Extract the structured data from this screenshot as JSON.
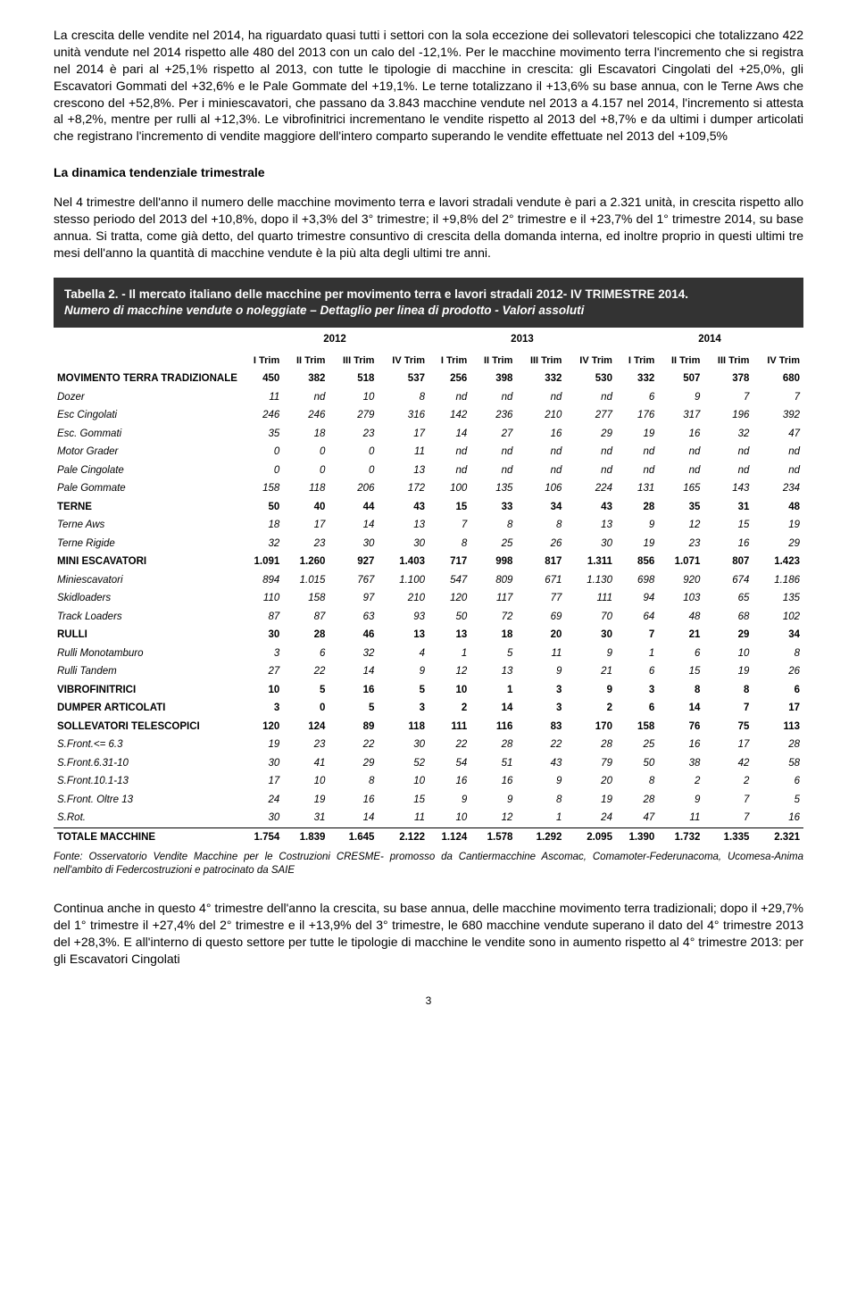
{
  "para1": "La crescita delle vendite nel 2014, ha riguardato quasi tutti i settori con la sola eccezione dei sollevatori telescopici che totalizzano 422 unità vendute nel 2014 rispetto alle 480 del 2013 con un calo del -12,1%. Per le macchine movimento terra l'incremento che si registra nel 2014 è pari al +25,1% rispetto al 2013, con tutte le tipologie di macchine in crescita: gli Escavatori Cingolati del +25,0%, gli Escavatori Gommati del +32,6% e le Pale Gommate del +19,1%. Le terne totalizzano il +13,6% su base annua, con le Terne Aws che crescono del +52,8%. Per i miniescavatori, che passano da 3.843 macchine vendute nel 2013 a 4.157 nel 2014, l'incremento si attesta al +8,2%, mentre per rulli al +12,3%. Le vibrofinitrici incrementano le vendite rispetto al 2013 del +8,7% e da ultimi i dumper articolati che registrano l'incremento di vendite maggiore dell'intero comparto superando le vendite effettuate nel 2013 del +109,5%",
  "heading1": "La dinamica tendenziale trimestrale",
  "para2": "Nel 4 trimestre dell'anno il numero delle macchine movimento terra e lavori stradali vendute è pari a 2.321 unità, in crescita rispetto allo stesso periodo del 2013 del +10,8%, dopo il +3,3% del 3° trimestre; il +9,8% del 2° trimestre e il +23,7% del 1° trimestre 2014, su base annua. Si tratta, come già detto, del quarto trimestre consuntivo di crescita della domanda interna, ed inoltre proprio in questi ultimi tre mesi dell'anno la quantità di macchine vendute è la più alta degli ultimi tre anni.",
  "table_title": "Tabella 2. - Il mercato italiano delle macchine per movimento terra e lavori stradali 2012- IV TRIMESTRE 2014.",
  "table_sub": "Numero di macchine vendute o noleggiate – Dettaglio per linea di prodotto - Valori assoluti",
  "years": [
    "2012",
    "2013",
    "2014"
  ],
  "trim_labels": [
    "I Trim",
    "II Trim",
    "III Trim",
    "IV Trim",
    "I Trim",
    "II Trim",
    "III Trim",
    "IV Trim",
    "I Trim",
    "II Trim",
    "III Trim",
    "IV Trim"
  ],
  "rows": [
    {
      "style": "bold",
      "label": "MOVIMENTO TERRA TRADIZIONALE",
      "v": [
        "450",
        "382",
        "518",
        "537",
        "256",
        "398",
        "332",
        "530",
        "332",
        "507",
        "378",
        "680"
      ]
    },
    {
      "style": "italic",
      "label": "Dozer",
      "v": [
        "11",
        "nd",
        "10",
        "8",
        "nd",
        "nd",
        "nd",
        "nd",
        "6",
        "9",
        "7",
        "7"
      ]
    },
    {
      "style": "italic",
      "label": "Esc Cingolati",
      "v": [
        "246",
        "246",
        "279",
        "316",
        "142",
        "236",
        "210",
        "277",
        "176",
        "317",
        "196",
        "392"
      ]
    },
    {
      "style": "italic",
      "label": "Esc. Gommati",
      "v": [
        "35",
        "18",
        "23",
        "17",
        "14",
        "27",
        "16",
        "29",
        "19",
        "16",
        "32",
        "47"
      ]
    },
    {
      "style": "italic",
      "label": "Motor Grader",
      "v": [
        "0",
        "0",
        "0",
        "11",
        "nd",
        "nd",
        "nd",
        "nd",
        "nd",
        "nd",
        "nd",
        "nd"
      ]
    },
    {
      "style": "italic",
      "label": "Pale Cingolate",
      "v": [
        "0",
        "0",
        "0",
        "13",
        "nd",
        "nd",
        "nd",
        "nd",
        "nd",
        "nd",
        "nd",
        "nd"
      ]
    },
    {
      "style": "italic",
      "label": "Pale Gommate",
      "v": [
        "158",
        "118",
        "206",
        "172",
        "100",
        "135",
        "106",
        "224",
        "131",
        "165",
        "143",
        "234"
      ]
    },
    {
      "style": "bold",
      "label": "TERNE",
      "v": [
        "50",
        "40",
        "44",
        "43",
        "15",
        "33",
        "34",
        "43",
        "28",
        "35",
        "31",
        "48"
      ]
    },
    {
      "style": "italic",
      "label": "Terne Aws",
      "v": [
        "18",
        "17",
        "14",
        "13",
        "7",
        "8",
        "8",
        "13",
        "9",
        "12",
        "15",
        "19"
      ]
    },
    {
      "style": "italic",
      "label": "Terne Rigide",
      "v": [
        "32",
        "23",
        "30",
        "30",
        "8",
        "25",
        "26",
        "30",
        "19",
        "23",
        "16",
        "29"
      ]
    },
    {
      "style": "bold",
      "label": "MINI ESCAVATORI",
      "v": [
        "1.091",
        "1.260",
        "927",
        "1.403",
        "717",
        "998",
        "817",
        "1.311",
        "856",
        "1.071",
        "807",
        "1.423"
      ]
    },
    {
      "style": "italic",
      "label": "Miniescavatori",
      "v": [
        "894",
        "1.015",
        "767",
        "1.100",
        "547",
        "809",
        "671",
        "1.130",
        "698",
        "920",
        "674",
        "1.186"
      ]
    },
    {
      "style": "italic",
      "label": "Skidloaders",
      "v": [
        "110",
        "158",
        "97",
        "210",
        "120",
        "117",
        "77",
        "111",
        "94",
        "103",
        "65",
        "135"
      ]
    },
    {
      "style": "italic",
      "label": "Track Loaders",
      "v": [
        "87",
        "87",
        "63",
        "93",
        "50",
        "72",
        "69",
        "70",
        "64",
        "48",
        "68",
        "102"
      ]
    },
    {
      "style": "bold",
      "label": "RULLI",
      "v": [
        "30",
        "28",
        "46",
        "13",
        "13",
        "18",
        "20",
        "30",
        "7",
        "21",
        "29",
        "34"
      ]
    },
    {
      "style": "italic",
      "label": "Rulli Monotamburo",
      "v": [
        "3",
        "6",
        "32",
        "4",
        "1",
        "5",
        "11",
        "9",
        "1",
        "6",
        "10",
        "8"
      ]
    },
    {
      "style": "italic",
      "label": "Rulli Tandem",
      "v": [
        "27",
        "22",
        "14",
        "9",
        "12",
        "13",
        "9",
        "21",
        "6",
        "15",
        "19",
        "26"
      ]
    },
    {
      "style": "bold",
      "label": "VIBROFINITRICI",
      "v": [
        "10",
        "5",
        "16",
        "5",
        "10",
        "1",
        "3",
        "9",
        "3",
        "8",
        "8",
        "6"
      ]
    },
    {
      "style": "bold",
      "label": "DUMPER ARTICOLATI",
      "v": [
        "3",
        "0",
        "5",
        "3",
        "2",
        "14",
        "3",
        "2",
        "6",
        "14",
        "7",
        "17"
      ]
    },
    {
      "style": "bold",
      "label": "SOLLEVATORI TELESCOPICI",
      "v": [
        "120",
        "124",
        "89",
        "118",
        "111",
        "116",
        "83",
        "170",
        "158",
        "76",
        "75",
        "113"
      ]
    },
    {
      "style": "italic",
      "label": "S.Front.<= 6.3",
      "v": [
        "19",
        "23",
        "22",
        "30",
        "22",
        "28",
        "22",
        "28",
        "25",
        "16",
        "17",
        "28"
      ]
    },
    {
      "style": "italic",
      "label": "S.Front.6.31-10",
      "v": [
        "30",
        "41",
        "29",
        "52",
        "54",
        "51",
        "43",
        "79",
        "50",
        "38",
        "42",
        "58"
      ]
    },
    {
      "style": "italic",
      "label": "S.Front.10.1-13",
      "v": [
        "17",
        "10",
        "8",
        "10",
        "16",
        "16",
        "9",
        "20",
        "8",
        "2",
        "2",
        "6"
      ]
    },
    {
      "style": "italic",
      "label": "S.Front. Oltre 13",
      "v": [
        "24",
        "19",
        "16",
        "15",
        "9",
        "9",
        "8",
        "19",
        "28",
        "9",
        "7",
        "5"
      ]
    },
    {
      "style": "italic",
      "label": "S.Rot.",
      "v": [
        "30",
        "31",
        "14",
        "11",
        "10",
        "12",
        "1",
        "24",
        "47",
        "11",
        "7",
        "16"
      ]
    }
  ],
  "totale": {
    "label": "TOTALE MACCHINE",
    "v": [
      "1.754",
      "1.839",
      "1.645",
      "2.122",
      "1.124",
      "1.578",
      "1.292",
      "2.095",
      "1.390",
      "1.732",
      "1.335",
      "2.321"
    ]
  },
  "fonte": "Fonte: Osservatorio Vendite Macchine per le Costruzioni CRESME- promosso da Cantiermacchine Ascomac, Comamoter-Federunacoma, Ucomesa-Anima nell'ambito di Federcostruzioni e patrocinato da SAIE",
  "para3": "Continua anche in questo 4° trimestre dell'anno la crescita, su base annua, delle macchine movimento terra tradizionali; dopo il +29,7% del 1° trimestre il +27,4% del 2° trimestre e il +13,9% del 3° trimestre, le 680 macchine vendute superano il dato del 4° trimestre 2013 del +28,3%. E all'interno di questo settore per tutte le tipologie di macchine le vendite sono in aumento rispetto al 4° trimestre 2013: per gli Escavatori Cingolati",
  "page": "3"
}
